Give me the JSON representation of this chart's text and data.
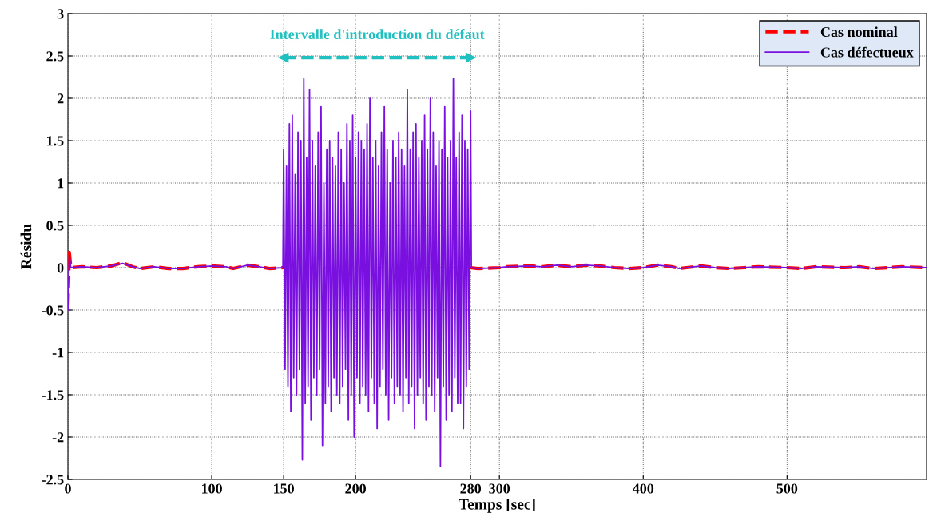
{
  "chart_data": {
    "type": "line",
    "xlabel": "Temps [sec]",
    "ylabel": "Résidu",
    "xlim": [
      0,
      597
    ],
    "xticks": [
      0,
      100,
      150,
      200,
      280,
      300,
      400,
      500
    ],
    "ylim": [
      -2.5,
      3
    ],
    "yticks": [
      -2.5,
      -2,
      -1.5,
      -1,
      -0.5,
      0,
      0.5,
      1,
      1.5,
      2,
      2.5,
      3
    ],
    "grid": true,
    "legend": "top right",
    "annotations": [
      "Intervalle d'introduction du défaut"
    ],
    "series": [
      {
        "name": "Cas nominal",
        "color": "#ff0000",
        "line_style": "dashed",
        "x": [
          0,
          1,
          2,
          10,
          20,
          30,
          38,
          45,
          50,
          60,
          70,
          80,
          90,
          100,
          110,
          115,
          125,
          133,
          140,
          150,
          160,
          180,
          200,
          220,
          240,
          260,
          280,
          285,
          300,
          305,
          320,
          330,
          340,
          350,
          360,
          370,
          380,
          390,
          400,
          410,
          420,
          425,
          440,
          450,
          460,
          470,
          480,
          500,
          510,
          520,
          540,
          550,
          560,
          580,
          597
        ],
        "values": [
          -0.45,
          0.18,
          0,
          0.01,
          0,
          0.02,
          0.06,
          0.01,
          -0.01,
          0.01,
          -0.01,
          -0.01,
          0.01,
          0.02,
          0.01,
          -0.01,
          0.03,
          0.01,
          -0.01,
          0,
          null,
          null,
          null,
          null,
          null,
          null,
          0,
          -0.01,
          0,
          0.01,
          0.02,
          0.01,
          0.03,
          0.01,
          0.03,
          0.02,
          0,
          -0.01,
          0,
          0.03,
          0.01,
          -0.01,
          0.02,
          0,
          -0.01,
          0,
          0.01,
          0,
          -0.01,
          0.01,
          0,
          0.01,
          -0.01,
          0.01,
          0
        ]
      },
      {
        "name": "Cas défectueux",
        "color": "#7a10e0",
        "line_style": "solid",
        "x": [
          0,
          1,
          2,
          10,
          20,
          30,
          38,
          45,
          50,
          60,
          70,
          80,
          90,
          100,
          110,
          115,
          125,
          133,
          140,
          149.5,
          150,
          151,
          152,
          153,
          154,
          155,
          156,
          157,
          158,
          159,
          160,
          161,
          162,
          163,
          164,
          165,
          166,
          167,
          168,
          169,
          170,
          171,
          172,
          173,
          174,
          175,
          176,
          177,
          178,
          179,
          180,
          181,
          182,
          183,
          184,
          185,
          186,
          187,
          188,
          189,
          190,
          191,
          192,
          193,
          194,
          195,
          196,
          197,
          198,
          199,
          200,
          201,
          202,
          203,
          204,
          205,
          206,
          207,
          208,
          209,
          210,
          211,
          212,
          213,
          214,
          215,
          216,
          217,
          218,
          219,
          220,
          221,
          222,
          223,
          224,
          225,
          226,
          227,
          228,
          229,
          230,
          231,
          232,
          233,
          234,
          235,
          236,
          237,
          238,
          239,
          240,
          241,
          242,
          243,
          244,
          245,
          246,
          247,
          248,
          249,
          250,
          251,
          252,
          253,
          254,
          255,
          256,
          257,
          258,
          259,
          260,
          261,
          262,
          263,
          264,
          265,
          266,
          267,
          268,
          269,
          270,
          271,
          272,
          273,
          274,
          275,
          276,
          277,
          278,
          279,
          280,
          280.5,
          285,
          300,
          305,
          320,
          330,
          340,
          350,
          360,
          370,
          380,
          390,
          400,
          410,
          420,
          425,
          440,
          450,
          460,
          470,
          480,
          500,
          510,
          520,
          540,
          550,
          560,
          580,
          597
        ],
        "values": [
          -0.5,
          0.15,
          0,
          0.01,
          0,
          0.02,
          0.05,
          0.01,
          -0.01,
          0.01,
          -0.01,
          -0.01,
          0.01,
          0.02,
          0.01,
          -0.01,
          0.03,
          0.01,
          -0.01,
          0,
          1.4,
          -1.2,
          1.2,
          -1.4,
          1.7,
          -1.7,
          1.8,
          -1.3,
          1.1,
          -1.5,
          1.6,
          -1.2,
          1.5,
          -2.27,
          2.23,
          -1.6,
          1.3,
          -1.4,
          2.1,
          -1.8,
          1.5,
          -1.3,
          1.2,
          -1.5,
          1.6,
          -1.2,
          1.9,
          -2.1,
          1.0,
          -1.6,
          1.4,
          -1.4,
          1.5,
          -1.7,
          1.3,
          -1.3,
          1.2,
          -1.5,
          1.6,
          -1.6,
          1.4,
          -1.4,
          1.0,
          -1.2,
          1.7,
          -1.8,
          1.5,
          -1.5,
          1.8,
          -2.0,
          1.3,
          -1.3,
          1.6,
          -1.6,
          1.5,
          -1.4,
          1.4,
          -1.5,
          1.7,
          -1.7,
          2.0,
          -1.3,
          1.3,
          -1.6,
          1.5,
          -1.9,
          1.2,
          -1.4,
          1.6,
          -1.2,
          1.9,
          -1.5,
          1.4,
          -1.8,
          1.0,
          -1.3,
          1.5,
          -1.6,
          1.3,
          -1.4,
          1.6,
          -1.5,
          1.4,
          -1.7,
          1.2,
          -1.3,
          2.1,
          -1.6,
          1.4,
          -1.4,
          1.6,
          -1.9,
          1.7,
          -1.5,
          1.3,
          -1.3,
          1.5,
          -1.6,
          1.8,
          -1.8,
          1.4,
          -1.4,
          2.0,
          -1.5,
          1.6,
          -1.7,
          1.2,
          -1.3,
          1.5,
          -2.35,
          1.4,
          -1.4,
          1.9,
          -1.8,
          1.3,
          -1.5,
          1.5,
          -1.7,
          2.23,
          -1.3,
          1.3,
          -1.6,
          1.6,
          -1.6,
          1.8,
          -1.9,
          1.5,
          -1.4,
          1.4,
          -1.2,
          1.85,
          0,
          -0.01,
          0,
          0.01,
          0.02,
          0.01,
          0.03,
          0.01,
          0.03,
          0.02,
          0,
          -0.01,
          0,
          0.03,
          0.01,
          -0.01,
          0.02,
          0,
          -0.01,
          0,
          0.01,
          0,
          -0.01,
          0.01,
          0,
          0.01,
          -0.01,
          0.01,
          0
        ]
      },
      {
        "color": "#20c0c0",
        "line_style": "dashed",
        "marker": "triangle",
        "x": [
          150,
          280
        ],
        "values": [
          2.48,
          2.48
        ]
      }
    ]
  }
}
